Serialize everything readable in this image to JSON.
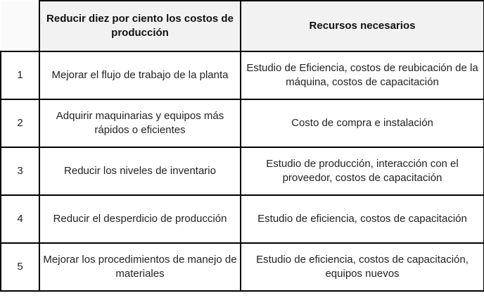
{
  "table": {
    "headers": [
      "",
      "Reducir diez por ciento los costos de producción",
      "Recursos necesarios"
    ],
    "rows": [
      [
        "1",
        "Mejorar el flujo de trabajo de la planta",
        "Estudio de Eficiencia, costos de reubicación de la máquina, costos de capacitación"
      ],
      [
        "2",
        "Adquirir maquinarias y equipos más rápidos o eficientes",
        "Costo de compra e instalación"
      ],
      [
        "3",
        "Reducir los niveles de inventario",
        "Estudio de producción, interacción con el proveedor, costos de capacitación"
      ],
      [
        "4",
        "Reducir el desperdicio de producción",
        "Estudio de eficiencia, costos de capacitación"
      ],
      [
        "5",
        "Mejorar los procedimientos de manejo de materiales",
        "Estudio de eficiencia, costos de capacitación, equipos nuevos"
      ]
    ]
  }
}
